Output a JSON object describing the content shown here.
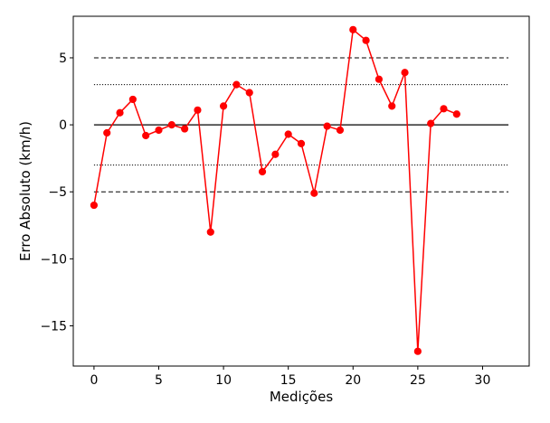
{
  "chart_data": {
    "type": "line",
    "xlabel": "Medições",
    "ylabel": "Erro Absoluto (km/h)",
    "xlim": [
      -1.6,
      33.6
    ],
    "ylim": [
      -18,
      8.1
    ],
    "xticks": [
      0,
      5,
      10,
      15,
      20,
      25,
      30
    ],
    "yticks": [
      5,
      0,
      -5,
      -10,
      -15
    ],
    "xtick_labels": [
      "0",
      "5",
      "10",
      "15",
      "20",
      "25",
      "30"
    ],
    "ytick_labels": [
      "5",
      "0",
      "−5",
      "−10",
      "−15"
    ],
    "grid": false,
    "series": [
      {
        "color": "#ff0000",
        "marker": "circle",
        "x": [
          0,
          1,
          2,
          3,
          4,
          5,
          6,
          7,
          8,
          9,
          10,
          11,
          12,
          13,
          14,
          15,
          16,
          17,
          18,
          19,
          20,
          21,
          22,
          23,
          24,
          25,
          26,
          27,
          28
        ],
        "values": [
          -6.0,
          -0.6,
          0.9,
          1.9,
          -0.8,
          -0.4,
          0.0,
          -0.3,
          1.1,
          -8.0,
          1.4,
          3.0,
          2.4,
          -3.5,
          -2.2,
          -0.7,
          -1.4,
          -5.1,
          -0.1,
          -0.4,
          7.1,
          6.3,
          3.4,
          1.4,
          3.9,
          -16.9,
          0.1,
          1.2,
          0.8
        ]
      }
    ],
    "reference_lines": [
      {
        "y": 5,
        "x_range": [
          0,
          32
        ],
        "color": "#000000",
        "style": "dashed"
      },
      {
        "y": 3,
        "x_range": [
          0,
          32
        ],
        "color": "#000000",
        "style": "dotted"
      },
      {
        "y": 0,
        "x_range": [
          0,
          32
        ],
        "color": "#000000",
        "style": "solid"
      },
      {
        "y": -3,
        "x_range": [
          0,
          32
        ],
        "color": "#000000",
        "style": "dotted"
      },
      {
        "y": -5,
        "x_range": [
          0,
          32
        ],
        "color": "#000000",
        "style": "dashed"
      }
    ]
  }
}
